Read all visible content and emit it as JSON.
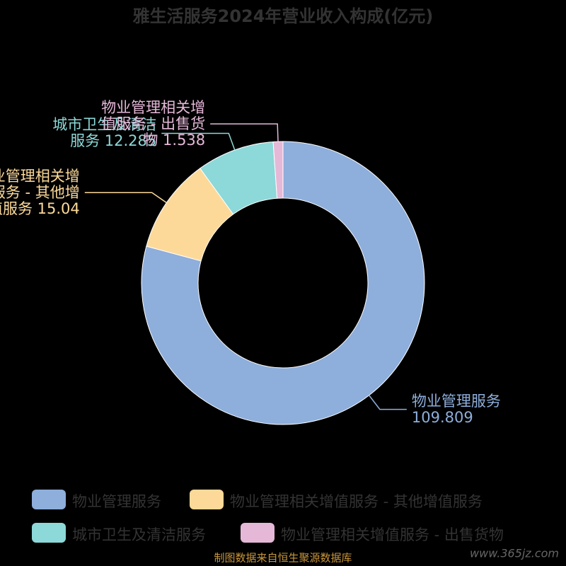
{
  "chart_data": {
    "type": "pie",
    "title": "雅生活服务2024年营业收入构成(亿元)",
    "categories": [
      "物业管理服务",
      "物业管理相关增值服务 - 其他增值服务",
      "城市卫生及清洁服务",
      "物业管理相关增值服务 - 出售货物"
    ],
    "values": [
      109.809,
      15.04,
      12.285,
      1.538
    ],
    "colors": [
      "#8eaedb",
      "#fdd999",
      "#8dd8d8",
      "#e5b8d8"
    ],
    "donut": true,
    "legend": "bottom",
    "source": "制图数据来自恒生聚源数据库",
    "watermark": "www.365jz.com"
  }
}
